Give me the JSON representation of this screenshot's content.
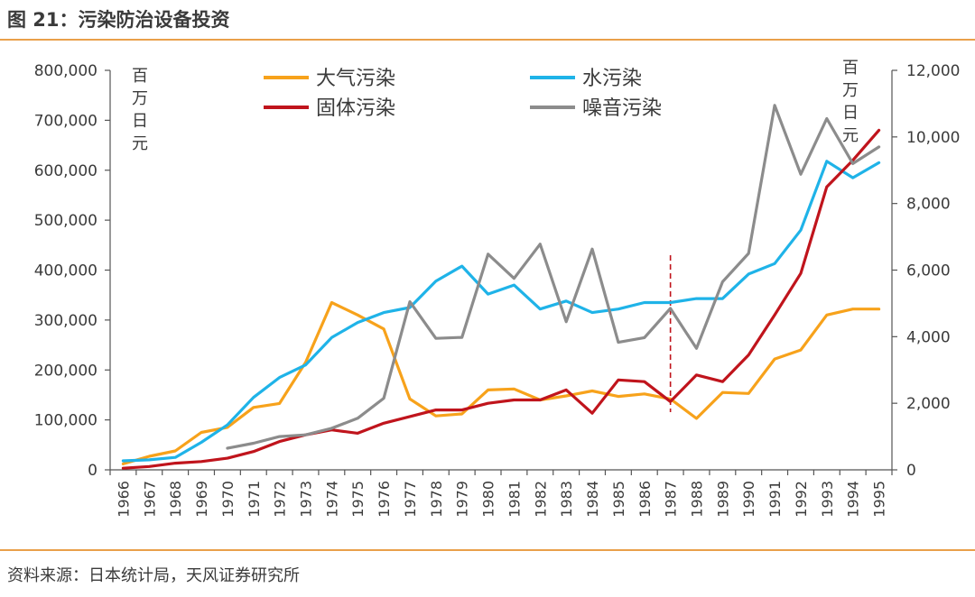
{
  "header": {
    "title": "图 21：污染防治设备投资"
  },
  "footer": {
    "source": "资料来源：日本统计局，天风证券研究所"
  },
  "colors": {
    "air": "#F7A21B",
    "water": "#1FB3E8",
    "solid": "#C0141C",
    "noise": "#8C8C8C",
    "rule": "#E9A04A",
    "marker": "#C0141C"
  },
  "chart_data": {
    "type": "line",
    "title": "",
    "x": [
      1966,
      1967,
      1968,
      1969,
      1970,
      1971,
      1972,
      1973,
      1974,
      1975,
      1976,
      1977,
      1978,
      1979,
      1980,
      1981,
      1982,
      1983,
      1984,
      1985,
      1986,
      1987,
      1988,
      1989,
      1990,
      1991,
      1992,
      1993,
      1994,
      1995
    ],
    "y_left": {
      "label": "百万日元",
      "range": [
        0,
        800000
      ],
      "ticks": [
        "0",
        "100,000",
        "200,000",
        "300,000",
        "400,000",
        "500,000",
        "600,000",
        "700,000",
        "800,000"
      ]
    },
    "y_right": {
      "label": "百万日元",
      "range": [
        0,
        12000
      ],
      "ticks": [
        "0",
        "2,000",
        "4,000",
        "6,000",
        "8,000",
        "10,000",
        "12,000"
      ]
    },
    "reference_line": {
      "x": 1987,
      "style": "dashed"
    },
    "grid": false,
    "legend_position": "top",
    "series": [
      {
        "name": "大气污染",
        "axis": "left",
        "color": "#F7A21B",
        "values": [
          12000,
          27000,
          38000,
          75000,
          85000,
          125000,
          133000,
          215000,
          335000,
          310000,
          282000,
          142000,
          108000,
          112000,
          160000,
          162000,
          140000,
          148000,
          158000,
          147000,
          152000,
          142000,
          103000,
          155000,
          153000,
          222000,
          240000,
          310000,
          322000,
          322000
        ]
      },
      {
        "name": "水污染",
        "axis": "left",
        "color": "#1FB3E8",
        "values": [
          18000,
          20000,
          25000,
          55000,
          90000,
          145000,
          185000,
          210000,
          265000,
          295000,
          315000,
          325000,
          378000,
          408000,
          352000,
          370000,
          322000,
          338000,
          315000,
          322000,
          335000,
          335000,
          343000,
          343000,
          392000,
          413000,
          480000,
          618000,
          585000,
          615000
        ]
      },
      {
        "name": "固体污染",
        "axis": "right",
        "color": "#C0141C",
        "values": [
          50,
          100,
          200,
          250,
          350,
          550,
          850,
          1050,
          1200,
          1100,
          1400,
          1600,
          1800,
          1800,
          2000,
          2100,
          2100,
          2400,
          1700,
          2700,
          2650,
          2050,
          2850,
          2650,
          3450,
          4650,
          5900,
          8500,
          9300,
          10200
        ]
      },
      {
        "name": "噪音污染",
        "axis": "right",
        "color": "#8C8C8C",
        "values": [
          null,
          null,
          null,
          null,
          650,
          800,
          1000,
          1050,
          1250,
          1550,
          2150,
          5050,
          3950,
          3980,
          6480,
          5750,
          6780,
          4450,
          6630,
          3830,
          3970,
          4850,
          3650,
          5650,
          6500,
          10950,
          8880,
          10550,
          9200,
          9700
        ]
      }
    ]
  }
}
